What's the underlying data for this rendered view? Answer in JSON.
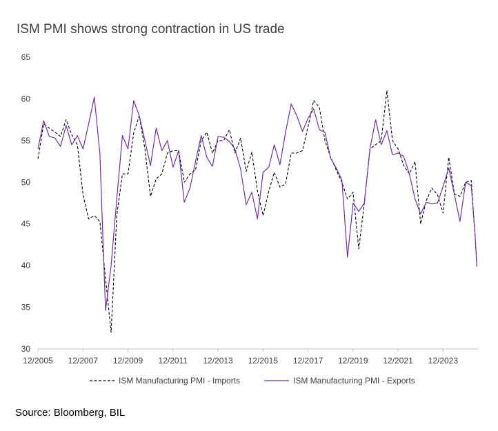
{
  "title": "ISM PMI shows strong contraction in US trade",
  "source": "Source: Bloomberg, BIL",
  "chart_data": {
    "type": "line",
    "title": "ISM PMI shows strong contraction in US trade",
    "xlabel": "",
    "ylabel": "",
    "ylim": [
      30,
      65
    ],
    "yticks": [
      "30",
      "35",
      "40",
      "45",
      "50",
      "55",
      "60",
      "65"
    ],
    "xlim": [
      2005.917,
      2025.5
    ],
    "xtick_labels": [
      "12/2005",
      "12/2007",
      "12/2009",
      "12/2011",
      "12/2013",
      "12/2015",
      "12/2017",
      "12/2019",
      "12/2021",
      "12/2023"
    ],
    "grid": false,
    "legend_position": "bottom",
    "series": [
      {
        "name": "ISM Manufacturing PMI - Imports",
        "color": "#000000",
        "dash": true,
        "x": [
          2005.92,
          2006.17,
          2006.42,
          2006.67,
          2006.92,
          2007.17,
          2007.42,
          2007.67,
          2007.92,
          2008.17,
          2008.42,
          2008.67,
          2008.92,
          2009.17,
          2009.42,
          2009.67,
          2009.92,
          2010.17,
          2010.42,
          2010.67,
          2010.92,
          2011.17,
          2011.42,
          2011.67,
          2011.92,
          2012.17,
          2012.42,
          2012.67,
          2012.92,
          2013.17,
          2013.42,
          2013.67,
          2013.92,
          2014.17,
          2014.42,
          2014.67,
          2014.92,
          2015.17,
          2015.42,
          2015.67,
          2015.92,
          2016.17,
          2016.42,
          2016.67,
          2016.92,
          2017.17,
          2017.42,
          2017.67,
          2017.92,
          2018.17,
          2018.42,
          2018.67,
          2018.92,
          2019.17,
          2019.42,
          2019.67,
          2019.92,
          2020.17,
          2020.42,
          2020.67,
          2020.92,
          2021.17,
          2021.42,
          2021.67,
          2021.92,
          2022.17,
          2022.42,
          2022.67,
          2022.92,
          2023.17,
          2023.42,
          2023.67,
          2023.92,
          2024.17,
          2024.42,
          2024.67,
          2024.92,
          2025.17,
          2025.33,
          2025.42
        ],
        "y": [
          52.8,
          57.0,
          56.5,
          56.0,
          55.5,
          57.5,
          55.7,
          54.5,
          48.5,
          45.6,
          46.0,
          45.3,
          38.5,
          32.0,
          46.0,
          51.0,
          51.0,
          55.9,
          58.0,
          54.0,
          48.3,
          50.4,
          51.0,
          53.5,
          53.8,
          53.8,
          50.0,
          51.0,
          51.5,
          55.0,
          56.0,
          53.5,
          55.0,
          55.0,
          56.3,
          53.5,
          55.3,
          51.3,
          53.6,
          49.0,
          46.0,
          48.9,
          51.2,
          49.4,
          49.8,
          53.5,
          53.5,
          53.8,
          56.7,
          59.8,
          59.0,
          55.0,
          53.0,
          51.5,
          50.0,
          48.0,
          48.8,
          42.0,
          47.5,
          54.0,
          54.5,
          55.0,
          61.0,
          55.0,
          54.0,
          52.0,
          51.0,
          52.5,
          45.0,
          47.8,
          49.3,
          48.5,
          46.3,
          53.0,
          48.6,
          48.3,
          50.0,
          50.2,
          44.0,
          39.9
        ]
      },
      {
        "name": "ISM Manufacturing PMI - Exports",
        "color": "#7030A0",
        "dash": false,
        "x": [
          2005.92,
          2006.17,
          2006.42,
          2006.67,
          2006.92,
          2007.17,
          2007.42,
          2007.67,
          2007.92,
          2008.17,
          2008.42,
          2008.67,
          2008.92,
          2009.17,
          2009.42,
          2009.67,
          2009.92,
          2010.17,
          2010.42,
          2010.67,
          2010.92,
          2011.17,
          2011.42,
          2011.67,
          2011.92,
          2012.17,
          2012.42,
          2012.67,
          2012.92,
          2013.17,
          2013.42,
          2013.67,
          2013.92,
          2014.17,
          2014.42,
          2014.67,
          2014.92,
          2015.17,
          2015.42,
          2015.67,
          2015.92,
          2016.17,
          2016.42,
          2016.67,
          2016.92,
          2017.17,
          2017.42,
          2017.67,
          2017.92,
          2018.17,
          2018.42,
          2018.67,
          2018.92,
          2019.17,
          2019.42,
          2019.67,
          2019.92,
          2020.17,
          2020.42,
          2020.67,
          2020.92,
          2021.17,
          2021.42,
          2021.67,
          2021.92,
          2022.17,
          2022.42,
          2022.67,
          2022.92,
          2023.17,
          2023.42,
          2023.67,
          2023.92,
          2024.17,
          2024.42,
          2024.67,
          2024.92,
          2025.17,
          2025.33,
          2025.42
        ],
        "y": [
          54.0,
          57.4,
          55.5,
          55.3,
          54.3,
          56.8,
          54.5,
          55.6,
          54.0,
          57.0,
          60.2,
          53.5,
          34.6,
          40.0,
          48.0,
          55.6,
          54.0,
          59.8,
          58.0,
          55.0,
          52.0,
          56.5,
          53.8,
          55.0,
          51.8,
          53.8,
          47.6,
          49.3,
          52.5,
          55.6,
          53.0,
          51.9,
          55.5,
          55.4,
          54.9,
          54.0,
          51.6,
          47.3,
          48.8,
          45.6,
          51.2,
          51.8,
          54.5,
          52.1,
          56.0,
          59.4,
          58.0,
          56.1,
          57.7,
          58.8,
          56.3,
          56.0,
          52.9,
          51.7,
          50.3,
          41.0,
          47.5,
          46.5,
          47.5,
          54.0,
          57.5,
          54.5,
          56.2,
          53.3,
          53.5,
          53.1,
          51.0,
          48.0,
          46.2,
          47.6,
          47.4,
          47.5,
          49.5,
          51.7,
          48.5,
          45.3,
          50.0,
          49.6,
          44.0,
          39.9
        ]
      }
    ]
  }
}
